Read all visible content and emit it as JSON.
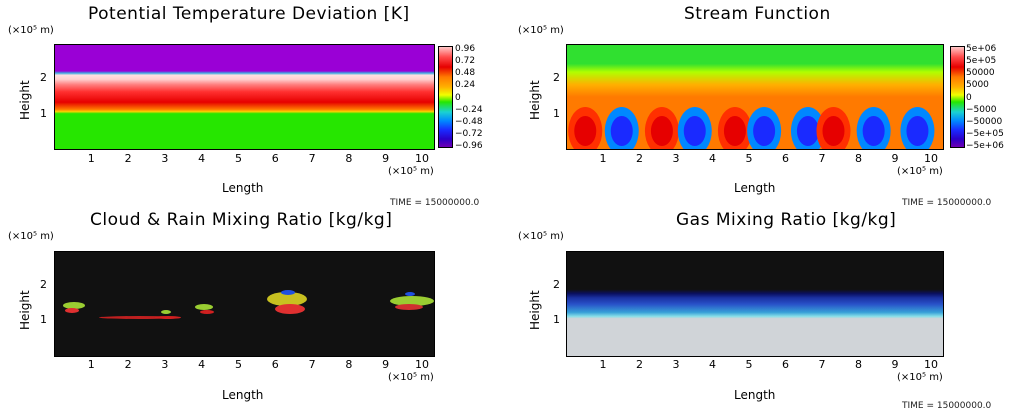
{
  "x_ticks": [
    "1",
    "2",
    "3",
    "4",
    "5",
    "6",
    "7",
    "8",
    "9",
    "10"
  ],
  "y_ticks": [
    "1",
    "2"
  ],
  "unit_x": "(×10⁵ m)",
  "unit_y": "(×10⁵ m)",
  "xlabel": "Length",
  "ylabel": "Height",
  "time_label": "TIME = 15000000.0",
  "panels": [
    {
      "title": "Potential Temperature Deviation [K]",
      "colorbar": [
        "0.96",
        "0.72",
        "0.48",
        "0.24",
        "0",
        "−0.24",
        "−0.48",
        "−0.72",
        "−0.96"
      ],
      "colorbar_colors": [
        "#ffc8c8",
        "#ff4c4c",
        "#e60000",
        "#ff7a00",
        "#ffb000",
        "#f0ff00",
        "#26e600",
        "#1ad2d2",
        "#0088ff",
        "#1a2aff",
        "#2a00c8",
        "#6e00b4"
      ]
    },
    {
      "title": "Stream Function",
      "colorbar": [
        "5e+06",
        "5e+05",
        "50000",
        "5000",
        "0",
        "−5000",
        "−50000",
        "−5e+05",
        "−5e+06"
      ],
      "colorbar_colors": [
        "#ffc8c8",
        "#ff4c4c",
        "#e60000",
        "#ff7a00",
        "#ffb000",
        "#f0ff00",
        "#26e600",
        "#1ad2d2",
        "#0088ff",
        "#1a2aff",
        "#2a00c8",
        "#6e00b4"
      ]
    },
    {
      "title": "Cloud & Rain Mixing Ratio [kg/kg]",
      "colorbar": [],
      "colorbar_colors": []
    },
    {
      "title": "Gas Mixing Ratio [kg/kg]",
      "colorbar": [],
      "colorbar_colors": []
    }
  ],
  "chart_data": [
    {
      "type": "heatmap",
      "title": "Potential Temperature Deviation [K]",
      "xlabel": "Length",
      "ylabel": "Height",
      "xlim": [
        0,
        10.3
      ],
      "ylim": [
        0,
        3
      ],
      "bands": [
        {
          "from": 0,
          "to": 1.1,
          "value": "~0 (green)"
        },
        {
          "from": 1.1,
          "to": 1.5,
          "value": "0.48–0.72 (orange/red)"
        },
        {
          "from": 1.5,
          "to": 2.0,
          "value": "0.72–0.96 (red)"
        },
        {
          "from": 2.0,
          "to": 2.2,
          "value": ">0.96 (pink)"
        },
        {
          "from": 2.2,
          "to": 3.0,
          "value": "<−0.96 (purple)"
        }
      ]
    },
    {
      "type": "heatmap",
      "title": "Stream Function",
      "xlabel": "Length",
      "ylabel": "Height",
      "xlim": [
        0,
        10.3
      ],
      "ylim": [
        0,
        3
      ],
      "cells_x": [
        0.5,
        1.5,
        2.6,
        3.5,
        4.6,
        5.4,
        6.6,
        7.3,
        8.4,
        9.6
      ],
      "cells_sign": [
        1,
        -1,
        1,
        -1,
        1,
        -1,
        -1,
        1,
        -1,
        -1
      ]
    },
    {
      "type": "heatmap",
      "title": "Cloud & Rain Mixing Ratio [kg/kg]",
      "xlabel": "Length",
      "ylabel": "Height",
      "xlim": [
        0,
        10.3
      ],
      "ylim": [
        0,
        3
      ]
    },
    {
      "type": "heatmap",
      "title": "Gas Mixing Ratio [kg/kg]",
      "xlabel": "Length",
      "ylabel": "Height",
      "xlim": [
        0,
        10.3
      ],
      "ylim": [
        0,
        3
      ]
    }
  ]
}
